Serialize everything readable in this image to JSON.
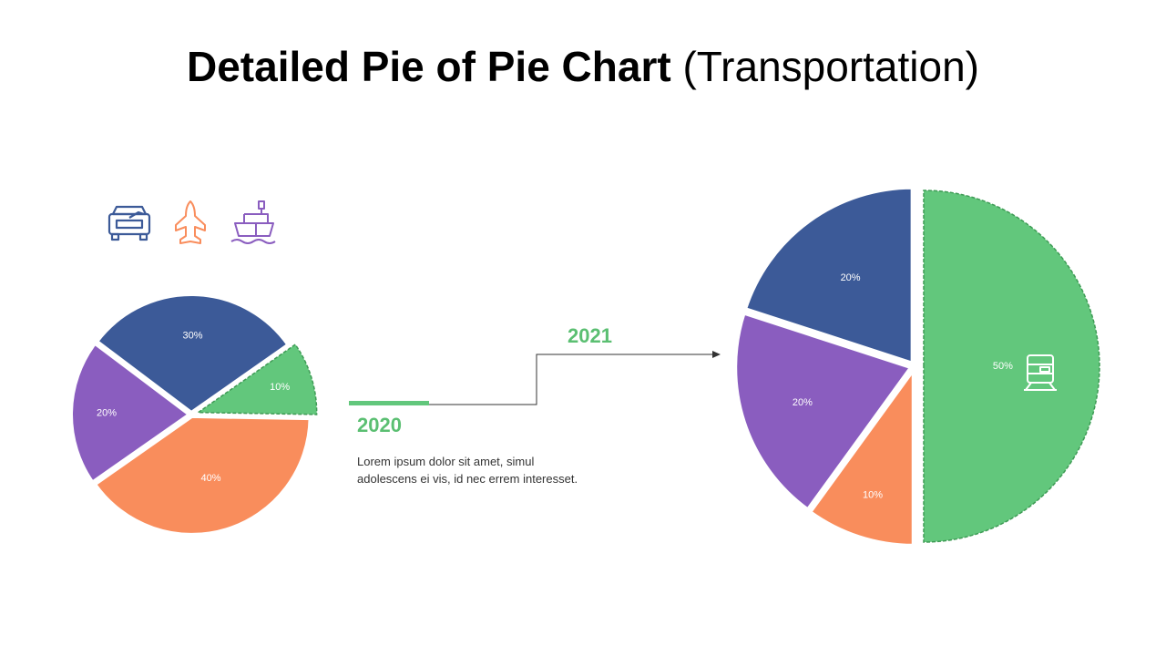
{
  "title": {
    "bold": "Detailed Pie of Pie Chart",
    "light": "(Transportation)"
  },
  "colors": {
    "blue": "#3c5a98",
    "purple": "#8a5dbf",
    "orange": "#f98d5c",
    "green": "#62c77c",
    "green_dark": "#3e9b55",
    "text_green": "#5bbf72",
    "arrow": "#333333"
  },
  "icons": [
    "car-icon",
    "plane-icon",
    "ship-icon",
    "train-icon"
  ],
  "timeline": {
    "from_year": "2020",
    "to_year": "2021",
    "description_line1": "Lorem ipsum dolor sit amet, simul",
    "description_line2": "adolescens ei vis, id nec errem  interesset."
  },
  "chart_data": [
    {
      "type": "pie",
      "title": "2020",
      "slices": [
        {
          "label": "10%",
          "value": 10,
          "color": "#62c77c",
          "highlight": true
        },
        {
          "label": "40%",
          "value": 40,
          "color": "#f98d5c"
        },
        {
          "label": "20%",
          "value": 20,
          "color": "#8a5dbf"
        },
        {
          "label": "30%",
          "value": 30,
          "color": "#3c5a98"
        }
      ]
    },
    {
      "type": "pie",
      "title": "2021",
      "slices": [
        {
          "label": "50%",
          "value": 50,
          "color": "#62c77c",
          "highlight": true
        },
        {
          "label": "10%",
          "value": 10,
          "color": "#f98d5c"
        },
        {
          "label": "20%",
          "value": 20,
          "color": "#8a5dbf"
        },
        {
          "label": "20%",
          "value": 20,
          "color": "#3c5a98"
        }
      ]
    }
  ]
}
